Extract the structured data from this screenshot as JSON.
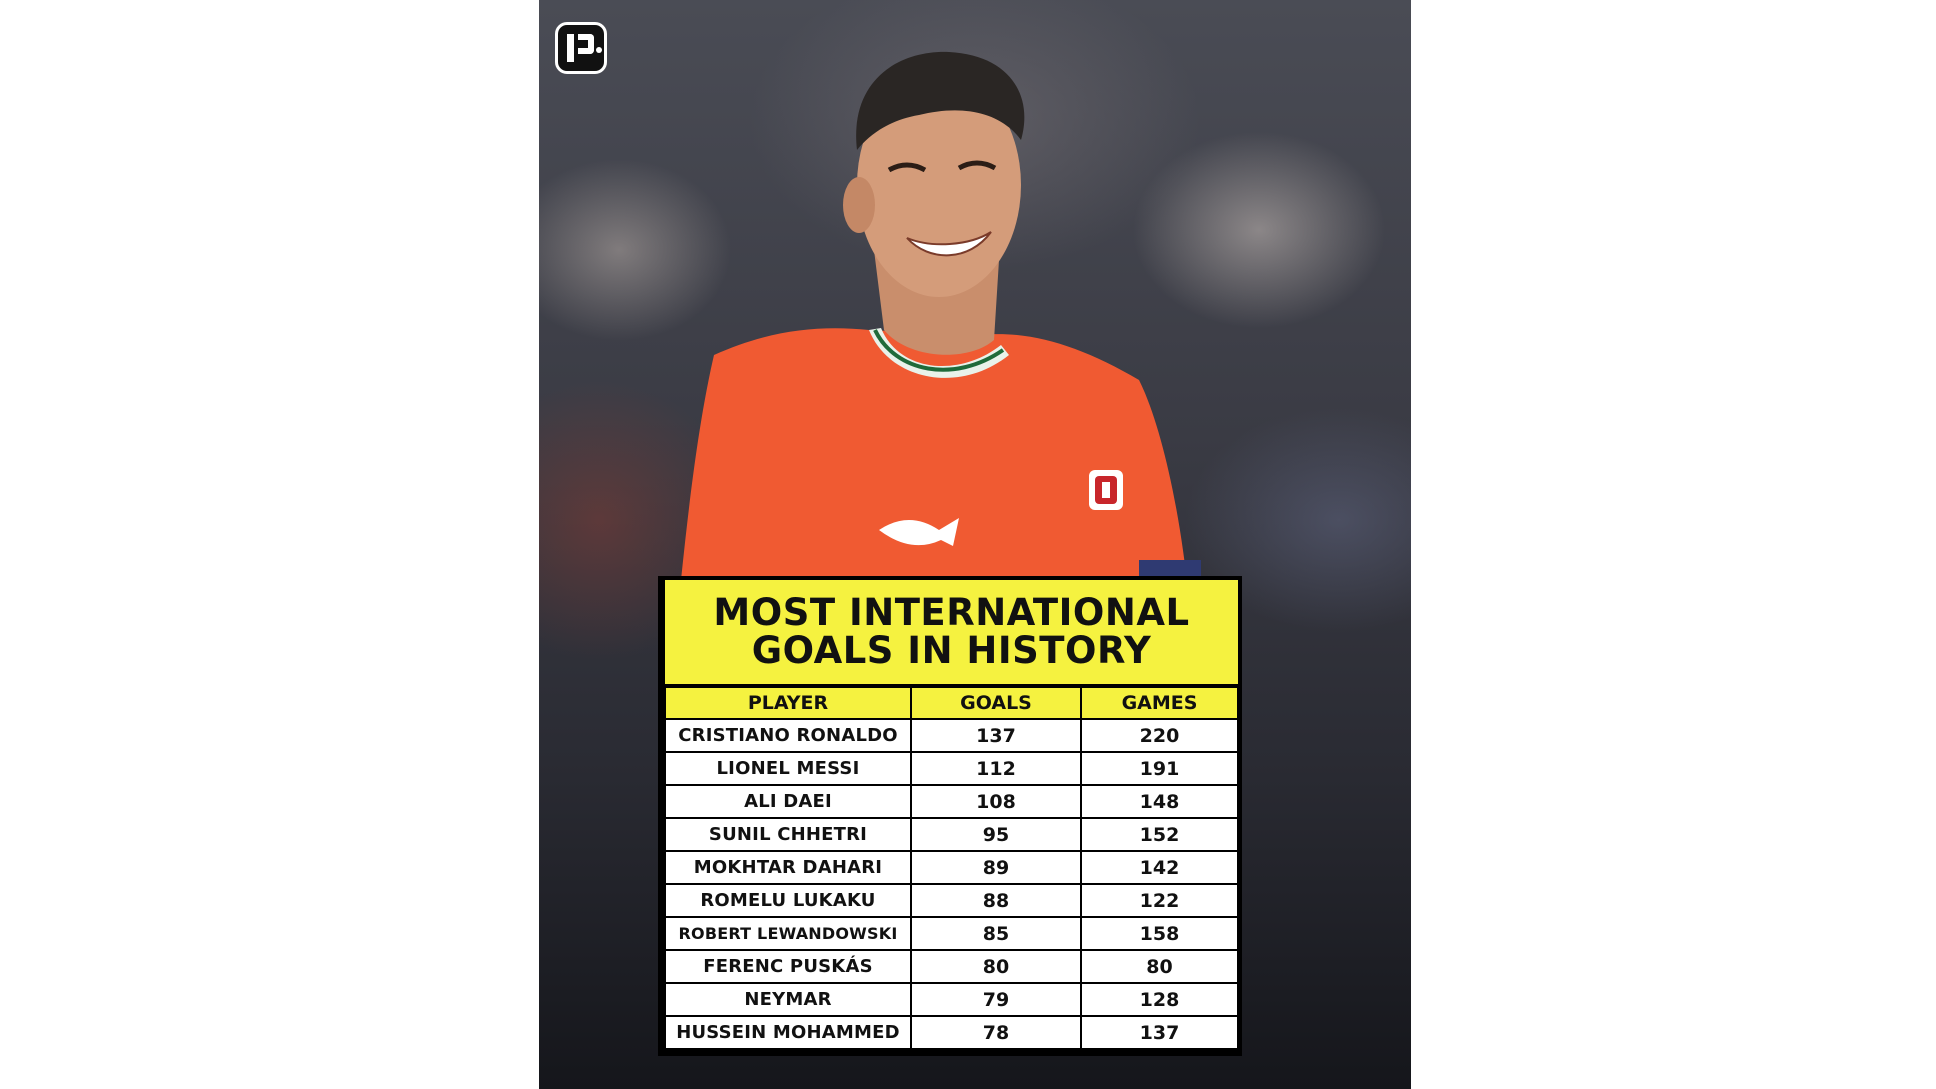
{
  "logo": {
    "icon": "p-logo-icon"
  },
  "title": {
    "line1": "MOST INTERNATIONAL",
    "line2": "GOALS IN HISTORY"
  },
  "colors": {
    "accent": "#f5f240",
    "jersey": "#f05a32"
  },
  "table": {
    "headers": [
      "PLAYER",
      "GOALS",
      "GAMES"
    ],
    "rows": [
      {
        "player": "CRISTIANO RONALDO",
        "goals": "137",
        "games": "220"
      },
      {
        "player": "LIONEL MESSI",
        "goals": "112",
        "games": "191"
      },
      {
        "player": "ALI DAEI",
        "goals": "108",
        "games": "148"
      },
      {
        "player": "SUNIL CHHETRI",
        "goals": "95",
        "games": "152"
      },
      {
        "player": "MOKHTAR DAHARI",
        "goals": "89",
        "games": "142"
      },
      {
        "player": "ROMELU LUKAKU",
        "goals": "88",
        "games": "122"
      },
      {
        "player": "ROBERT LEWANDOWSKI",
        "goals": "85",
        "games": "158"
      },
      {
        "player": "FERENC PUSKÁS",
        "goals": "80",
        "games": "80"
      },
      {
        "player": "NEYMAR",
        "goals": "79",
        "games": "128"
      },
      {
        "player": "HUSSEIN MOHAMMED",
        "goals": "78",
        "games": "137"
      }
    ]
  }
}
